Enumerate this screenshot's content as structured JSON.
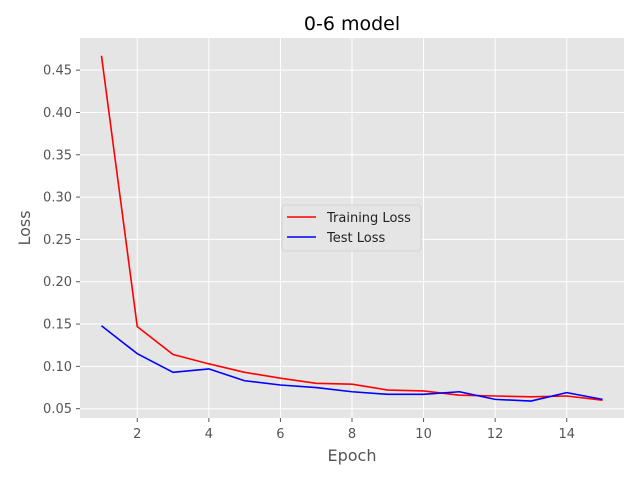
{
  "chart_data": {
    "type": "line",
    "title": "0-6 model",
    "xlabel": "Epoch",
    "ylabel": "Loss",
    "xlim": [
      0.4,
      15.6
    ],
    "ylim": [
      0.039,
      0.488
    ],
    "xticks": [
      2,
      4,
      6,
      8,
      10,
      12,
      14
    ],
    "yticks": [
      0.05,
      0.1,
      0.15,
      0.2,
      0.25,
      0.3,
      0.35,
      0.4,
      0.45
    ],
    "xtick_labels": [
      "2",
      "4",
      "6",
      "8",
      "10",
      "12",
      "14"
    ],
    "ytick_labels": [
      "0.05",
      "0.10",
      "0.15",
      "0.20",
      "0.25",
      "0.30",
      "0.35",
      "0.40",
      "0.45"
    ],
    "grid": true,
    "legend_position": "center-right",
    "x": [
      1,
      2,
      3,
      4,
      5,
      6,
      7,
      8,
      9,
      10,
      11,
      12,
      13,
      14,
      15
    ],
    "series": [
      {
        "name": "Training Loss",
        "color": "#ff0000",
        "values": [
          0.467,
          0.147,
          0.114,
          0.103,
          0.093,
          0.086,
          0.08,
          0.079,
          0.072,
          0.071,
          0.066,
          0.065,
          0.064,
          0.065,
          0.06
        ]
      },
      {
        "name": "Test Loss",
        "color": "#0000ff",
        "values": [
          0.148,
          0.115,
          0.093,
          0.097,
          0.083,
          0.078,
          0.075,
          0.07,
          0.067,
          0.067,
          0.07,
          0.061,
          0.059,
          0.069,
          0.061
        ]
      }
    ]
  }
}
